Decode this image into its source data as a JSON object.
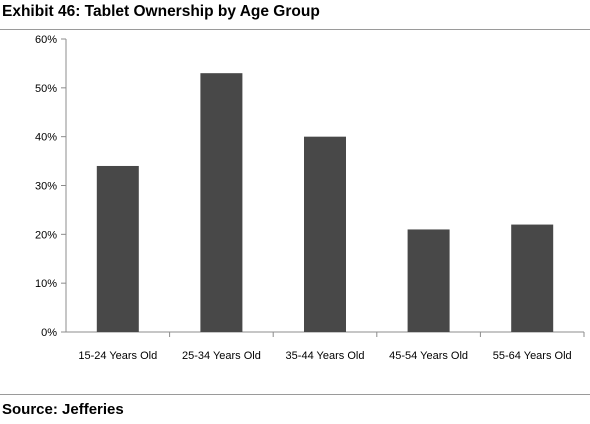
{
  "title": "Exhibit 46: Tablet Ownership by Age Group",
  "source": "Source: Jefferies",
  "chart_data": {
    "type": "bar",
    "categories": [
      "15-24 Years Old",
      "25-34 Years Old",
      "35-44 Years Old",
      "45-54 Years Old",
      "55-64 Years Old"
    ],
    "values": [
      34,
      53,
      40,
      21,
      22
    ],
    "yticks": [
      "0%",
      "10%",
      "20%",
      "30%",
      "40%",
      "50%",
      "60%"
    ],
    "ylim": [
      0,
      60
    ],
    "grid": false,
    "bar_color": "#484848"
  }
}
